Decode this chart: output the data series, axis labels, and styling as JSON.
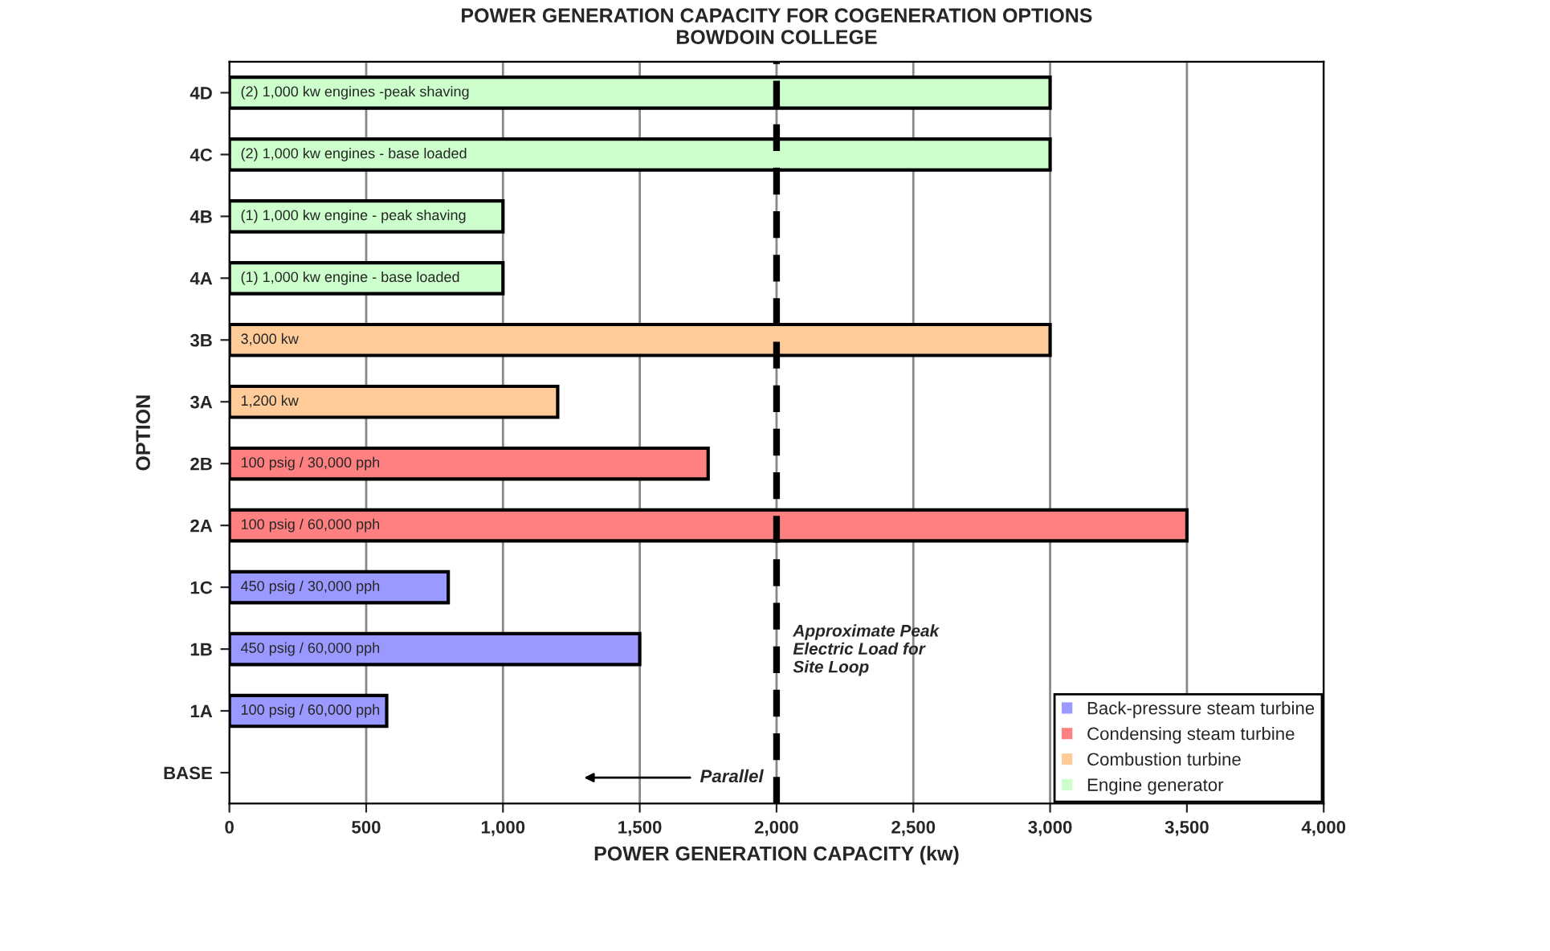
{
  "chart_data": {
    "type": "bar",
    "orientation": "horizontal",
    "title": "POWER GENERATION CAPACITY FOR COGENERATION OPTIONS",
    "subtitle": "BOWDOIN COLLEGE",
    "xlabel": "POWER GENERATION CAPACITY (kw)",
    "ylabel": "OPTION",
    "categories": [
      "4D",
      "4C",
      "4B",
      "4A",
      "3B",
      "3A",
      "2B",
      "2A",
      "1C",
      "1B",
      "1A",
      "BASE"
    ],
    "series": [
      {
        "name": "Back-pressure steam turbine",
        "color": "#9999ff",
        "values": [
          null,
          null,
          null,
          null,
          null,
          null,
          null,
          null,
          800,
          1500,
          575,
          null
        ]
      },
      {
        "name": "Condensing steam turbine",
        "color": "#ff8080",
        "values": [
          null,
          null,
          null,
          null,
          null,
          null,
          1750,
          3500,
          null,
          null,
          null,
          null
        ]
      },
      {
        "name": "Combustion turbine",
        "color": "#ffcc99",
        "values": [
          null,
          null,
          null,
          null,
          3000,
          1200,
          null,
          null,
          null,
          null,
          null,
          null
        ]
      },
      {
        "name": "Engine generator",
        "color": "#ccffcc",
        "values": [
          3000,
          3000,
          1000,
          1000,
          null,
          null,
          null,
          null,
          null,
          null,
          null,
          null
        ]
      }
    ],
    "xlim": [
      0,
      4000
    ],
    "xticks": [
      0,
      500,
      {
        "value": 1000,
        "label": "1,000"
      },
      {
        "value": 1500,
        "label": "1,500"
      },
      {
        "value": 2000,
        "label": "2,000"
      },
      {
        "value": 2500,
        "label": "2,500"
      },
      {
        "value": 3000,
        "label": "3,000"
      },
      {
        "value": 3500,
        "label": "3,500"
      },
      {
        "value": 4000,
        "label": "4,000"
      }
    ],
    "ref_lines": [
      {
        "axis": "x",
        "value": 2000,
        "label": "Approximate Peak\nElectric Load for\nSite Loop",
        "color": "#000000",
        "line_style": "dashed"
      }
    ],
    "annotations": [
      "(2) 1,000 kw engines -peak shaving",
      "(2) 1,000 kw engines - base loaded",
      "(1) 1,000 kw engine - peak shaving",
      "(1) 1,000 kw engine - base loaded",
      "3,000 kw",
      "1,200 kw",
      "100 psig / 30,000 pph",
      "100 psig / 60,000 pph",
      "450 psig / 30,000 pph",
      "450 psig / 60,000 pph",
      "100 psig / 60,000 pph",
      "Parallel"
    ],
    "grid": "x",
    "legend": "bottom right"
  }
}
